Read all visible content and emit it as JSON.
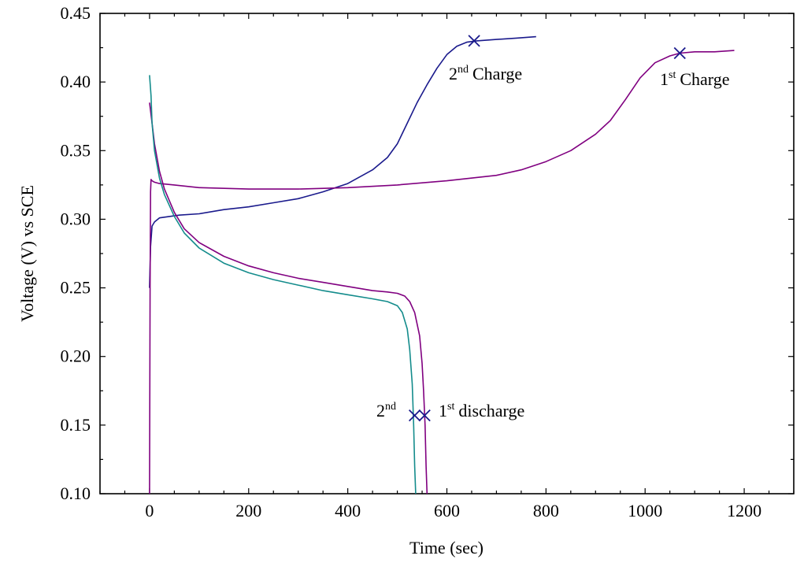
{
  "chart_data": {
    "type": "line",
    "xlabel": "Time (sec)",
    "ylabel": "Voltage (V) vs SCE",
    "xlim": [
      -100,
      1300
    ],
    "ylim": [
      0.1,
      0.45
    ],
    "xticks": [
      0,
      200,
      400,
      600,
      800,
      1000,
      1200
    ],
    "yticks": [
      0.1,
      0.15,
      0.2,
      0.25,
      0.3,
      0.35,
      0.4,
      0.45
    ],
    "xtick_labels": [
      "0",
      "200",
      "400",
      "600",
      "800",
      "1000",
      "1200"
    ],
    "ytick_labels": [
      "0.10",
      "0.15",
      "0.20",
      "0.25",
      "0.30",
      "0.35",
      "0.40",
      "0.45"
    ],
    "x_minor_step": 50,
    "y_minor_step": 0.025,
    "grid": false,
    "legend": "none",
    "series": [
      {
        "color": "#1a1a8c",
        "x": [
          0,
          2,
          5,
          10,
          20,
          40,
          60,
          100,
          150,
          200,
          250,
          300,
          350,
          400,
          450,
          480,
          500,
          520,
          540,
          560,
          580,
          600,
          620,
          640,
          660,
          700,
          740,
          780
        ],
        "y": [
          0.25,
          0.28,
          0.295,
          0.298,
          0.301,
          0.302,
          0.303,
          0.304,
          0.307,
          0.309,
          0.312,
          0.315,
          0.32,
          0.326,
          0.336,
          0.345,
          0.355,
          0.37,
          0.385,
          0.398,
          0.41,
          0.42,
          0.426,
          0.429,
          0.43,
          0.431,
          0.432,
          0.433
        ]
      },
      {
        "color": "#800080",
        "x": [
          0,
          1,
          2,
          3,
          5,
          10,
          20,
          50,
          100,
          200,
          300,
          400,
          500,
          600,
          700,
          750,
          800,
          850,
          900,
          930,
          960,
          990,
          1020,
          1050,
          1070,
          1100,
          1140,
          1180
        ],
        "y": [
          0.1,
          0.25,
          0.32,
          0.329,
          0.328,
          0.327,
          0.326,
          0.325,
          0.323,
          0.322,
          0.322,
          0.323,
          0.325,
          0.328,
          0.332,
          0.336,
          0.342,
          0.35,
          0.362,
          0.372,
          0.387,
          0.403,
          0.414,
          0.419,
          0.421,
          0.422,
          0.422,
          0.423
        ]
      },
      {
        "color": "#800080",
        "x": [
          0,
          5,
          10,
          20,
          30,
          50,
          70,
          100,
          150,
          200,
          250,
          300,
          350,
          400,
          450,
          480,
          500,
          515,
          525,
          535,
          545,
          550,
          553,
          556,
          558,
          560
        ],
        "y": [
          0.385,
          0.37,
          0.355,
          0.335,
          0.322,
          0.305,
          0.293,
          0.283,
          0.273,
          0.266,
          0.261,
          0.257,
          0.254,
          0.251,
          0.248,
          0.247,
          0.246,
          0.244,
          0.24,
          0.232,
          0.215,
          0.195,
          0.175,
          0.15,
          0.12,
          0.1
        ]
      },
      {
        "color": "#148c8c",
        "x": [
          0,
          3,
          5,
          10,
          20,
          30,
          50,
          70,
          100,
          150,
          200,
          250,
          300,
          350,
          400,
          450,
          480,
          500,
          510,
          520,
          525,
          530,
          533,
          535,
          537
        ],
        "y": [
          0.405,
          0.39,
          0.37,
          0.35,
          0.33,
          0.318,
          0.302,
          0.29,
          0.279,
          0.268,
          0.261,
          0.256,
          0.252,
          0.248,
          0.245,
          0.242,
          0.24,
          0.237,
          0.232,
          0.22,
          0.205,
          0.18,
          0.15,
          0.12,
          0.1
        ]
      }
    ],
    "markers": [
      {
        "x": 655,
        "y": 0.43
      },
      {
        "x": 1070,
        "y": 0.421
      },
      {
        "x": 535,
        "y": 0.157
      },
      {
        "x": 555,
        "y": 0.157
      }
    ],
    "marker_color": "#1a1a8c",
    "annotations": {
      "second_charge": {
        "sup": "nd",
        "num": "2",
        "text": "Charge"
      },
      "first_charge": {
        "sup": "st",
        "num": "1",
        "text": "Charge"
      },
      "second_discharge": {
        "sup": "nd",
        "num": "2"
      },
      "first_discharge": {
        "sup": "st",
        "num": "1",
        "text": "discharge"
      }
    }
  }
}
